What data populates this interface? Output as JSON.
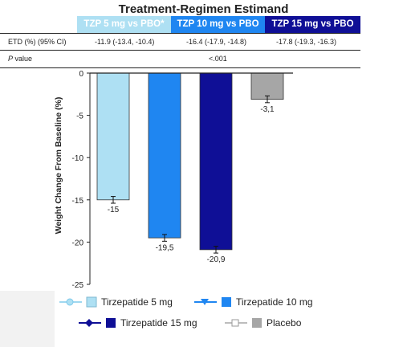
{
  "header": {
    "title": "Treatment-Regimen Estimand",
    "columns": [
      "TZP 5 mg vs PBO*",
      "TZP 10 mg vs PBO",
      "TZP 15 mg vs PBO"
    ]
  },
  "table": {
    "rows": [
      {
        "label": "ETD (%) (95% CI)",
        "values": [
          "-11.9 (-13.4, -10.4)",
          "-16.4 (-17.9, -14.8)",
          "-17.8 (-19.3, -16.3)"
        ]
      },
      {
        "label_italic": "P",
        "label_rest": " value",
        "values": [
          "<.001"
        ]
      }
    ]
  },
  "chart_data": {
    "type": "bar",
    "categories": [
      "Tirzepatide 5 mg",
      "Tirzepatide 10 mg",
      "Tirzepatide 15 mg",
      "Placebo"
    ],
    "values": [
      -15,
      -19.5,
      -20.9,
      -3.1
    ],
    "value_labels": [
      "-15",
      "-19,5",
      "-20,9",
      "-3,1"
    ],
    "error": [
      0.4,
      0.4,
      0.4,
      0.4
    ],
    "colors": [
      "#aee0f3",
      "#1f86f1",
      "#0f0f96",
      "#a6a6a6"
    ],
    "ylabel": "Weight Change From Baseline (%)",
    "ylim": [
      -25,
      0
    ],
    "yticks": [
      0,
      -5,
      -10,
      -15,
      -20,
      -25
    ],
    "legend_position": "bottom"
  },
  "legend": {
    "items": [
      {
        "label": "Tirzepatide 5 mg",
        "color": "#aee0f3",
        "line_color": "#9fd8f0",
        "marker": "circle"
      },
      {
        "label": "Tirzepatide 10 mg",
        "color": "#1f86f1",
        "line_color": "#1f86f1",
        "marker": "triangle-down"
      },
      {
        "label": "Tirzepatide 15 mg",
        "color": "#0f0f96",
        "line_color": "#0f0f96",
        "marker": "diamond"
      },
      {
        "label": "Placebo",
        "color": "#a6a6a6",
        "line_color": "#bdbdbd",
        "marker": "square-open"
      }
    ]
  }
}
